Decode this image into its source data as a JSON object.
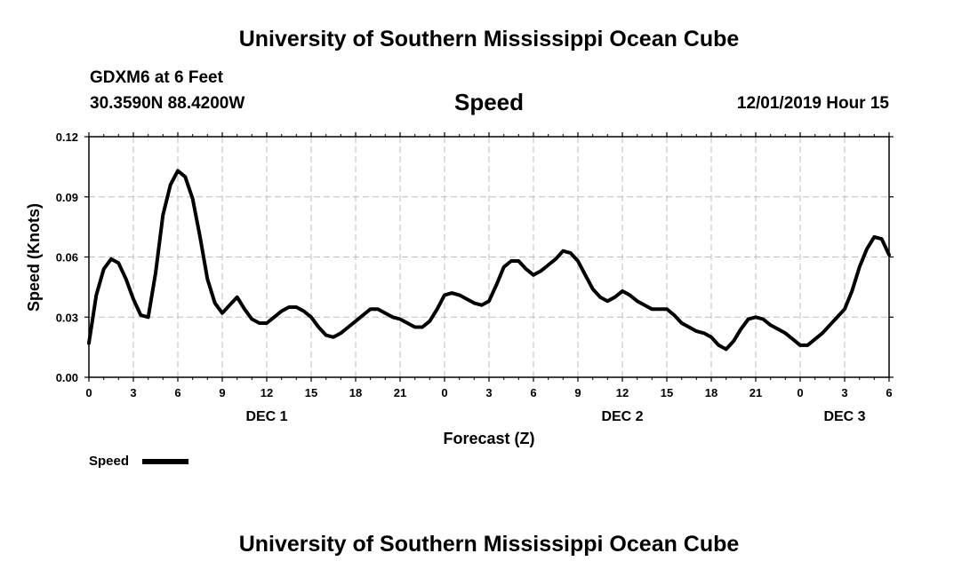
{
  "header": {
    "title": "University of Southern Mississippi Ocean Cube",
    "station": "GDXM6 at 6 Feet",
    "coordinates": "30.3590N 88.4200W",
    "datetime": "12/01/2019 Hour 15"
  },
  "footer": {
    "title": "University of Southern Mississippi Ocean Cube"
  },
  "chart_data": {
    "type": "line",
    "title": "Speed",
    "xlabel": "Forecast (Z)",
    "ylabel": "Speed (Knots)",
    "xlim": [
      0,
      54
    ],
    "ylim": [
      0,
      0.12
    ],
    "grid": true,
    "x_tick_values": [
      0,
      3,
      6,
      9,
      12,
      15,
      18,
      21,
      24,
      27,
      30,
      33,
      36,
      39,
      42,
      45,
      48,
      51,
      54
    ],
    "x_tick_labels": [
      "0",
      "3",
      "6",
      "9",
      "12",
      "15",
      "18",
      "21",
      "0",
      "3",
      "6",
      "9",
      "12",
      "15",
      "18",
      "21",
      "0",
      "3",
      "6"
    ],
    "y_ticks": [
      0,
      0.03,
      0.06,
      0.09,
      0.12
    ],
    "y_tick_labels": [
      "0.00",
      "0.03",
      "0.06",
      "0.09",
      "0.12"
    ],
    "date_labels": [
      {
        "x": 12,
        "label": "DEC 1"
      },
      {
        "x": 36,
        "label": "DEC 2"
      },
      {
        "x": 51,
        "label": "DEC 3"
      }
    ],
    "legend": {
      "label": "Speed",
      "position": "bottom-left"
    },
    "series": [
      {
        "name": "Speed",
        "color": "#000000",
        "x": [
          0,
          0.5,
          1,
          1.5,
          2,
          2.5,
          3,
          3.5,
          4,
          4.5,
          5,
          5.5,
          6,
          6.5,
          7,
          7.5,
          8,
          8.5,
          9,
          9.5,
          10,
          10.5,
          11,
          11.5,
          12,
          12.5,
          13,
          13.5,
          14,
          14.5,
          15,
          15.5,
          16,
          16.5,
          17,
          17.5,
          18,
          18.5,
          19,
          19.5,
          20,
          20.5,
          21,
          21.5,
          22,
          22.5,
          23,
          23.5,
          24,
          24.5,
          25,
          25.5,
          26,
          26.5,
          27,
          27.5,
          28,
          28.5,
          29,
          29.5,
          30,
          30.5,
          31,
          31.5,
          32,
          32.5,
          33,
          33.5,
          34,
          34.5,
          35,
          35.5,
          36,
          36.5,
          37,
          37.5,
          38,
          38.5,
          39,
          39.5,
          40,
          40.5,
          41,
          41.5,
          42,
          42.5,
          43,
          43.5,
          44,
          44.5,
          45,
          45.5,
          46,
          46.5,
          47,
          47.5,
          48,
          48.5,
          49,
          49.5,
          50,
          50.5,
          51,
          51.5,
          52,
          52.5,
          53,
          53.5,
          54
        ],
        "values": [
          0.017,
          0.041,
          0.054,
          0.059,
          0.057,
          0.049,
          0.039,
          0.031,
          0.03,
          0.052,
          0.081,
          0.096,
          0.103,
          0.1,
          0.089,
          0.07,
          0.049,
          0.037,
          0.032,
          0.036,
          0.04,
          0.034,
          0.029,
          0.027,
          0.027,
          0.03,
          0.033,
          0.035,
          0.035,
          0.033,
          0.03,
          0.025,
          0.021,
          0.02,
          0.022,
          0.025,
          0.028,
          0.031,
          0.034,
          0.034,
          0.032,
          0.03,
          0.029,
          0.027,
          0.025,
          0.025,
          0.028,
          0.034,
          0.041,
          0.042,
          0.041,
          0.039,
          0.037,
          0.036,
          0.038,
          0.046,
          0.055,
          0.058,
          0.058,
          0.054,
          0.051,
          0.053,
          0.056,
          0.059,
          0.063,
          0.062,
          0.058,
          0.051,
          0.044,
          0.04,
          0.038,
          0.04,
          0.043,
          0.041,
          0.038,
          0.036,
          0.034,
          0.034,
          0.034,
          0.031,
          0.027,
          0.025,
          0.023,
          0.022,
          0.02,
          0.016,
          0.014,
          0.018,
          0.024,
          0.029,
          0.03,
          0.029,
          0.026,
          0.024,
          0.022,
          0.019,
          0.016,
          0.016,
          0.019,
          0.022,
          0.026,
          0.03,
          0.034,
          0.043,
          0.055,
          0.064,
          0.07,
          0.069,
          0.061
        ]
      }
    ]
  }
}
